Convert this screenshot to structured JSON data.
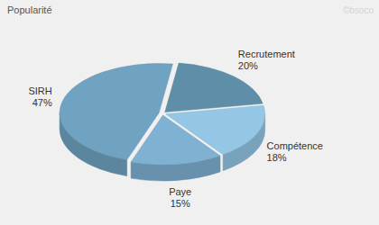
{
  "chart_data": {
    "type": "pie",
    "title": "Popularité",
    "annotations": [
      "©bsoco"
    ],
    "categories": [
      "Recrutement",
      "Compétence",
      "Paye",
      "SIRH"
    ],
    "values": [
      20,
      18,
      15,
      47
    ],
    "value_labels": [
      "20%",
      "18%",
      "15%",
      "47%"
    ],
    "colors": [
      "#5f8ea8",
      "#94c6e6",
      "#7fb1d3",
      "#6fa3c1"
    ],
    "data_labels": true
  }
}
